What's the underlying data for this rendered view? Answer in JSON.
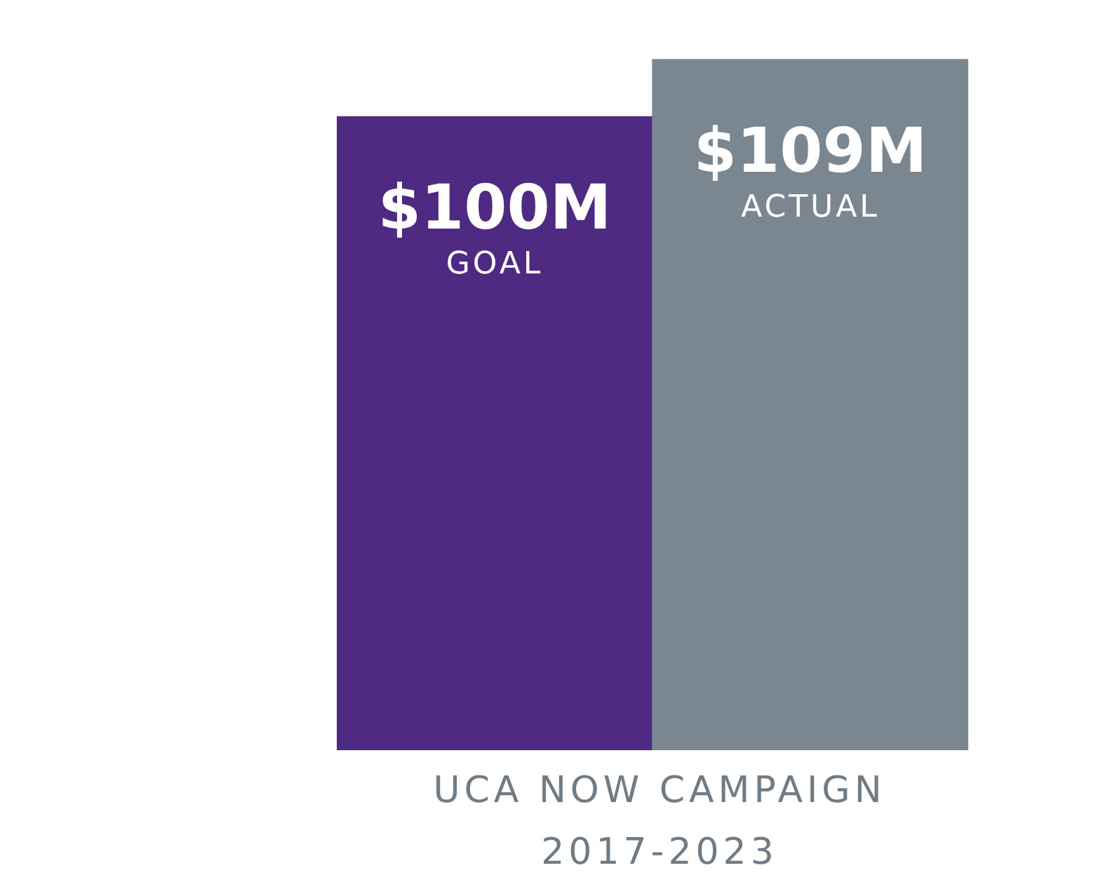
{
  "chart_data": {
    "type": "bar",
    "title": "UCA NOW CAMPAIGN",
    "subtitle": "2017-2023",
    "categories": [
      "GOAL",
      "ACTUAL"
    ],
    "values": [
      100,
      109
    ],
    "colors": [
      "#4f2a82",
      "#7a8690"
    ],
    "value_labels": [
      "$100M",
      "$109M"
    ],
    "tick_labels": false
  }
}
